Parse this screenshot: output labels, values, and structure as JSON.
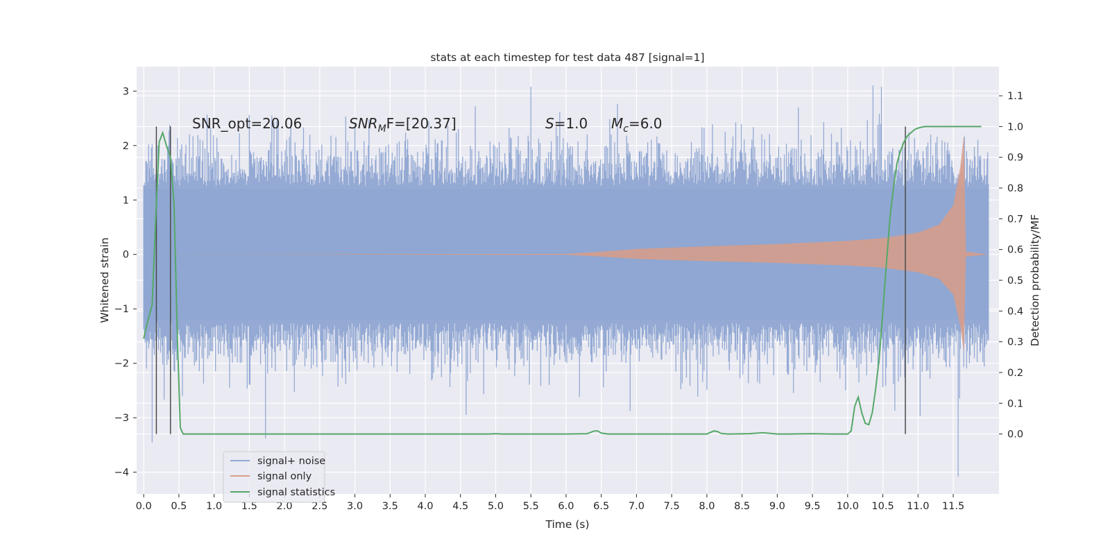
{
  "chart_data": {
    "type": "line",
    "title": "stats at each timestep for test data 487 [signal=1]",
    "xlabel": "Time (s)",
    "ylabel": "Whitened strain",
    "y2label": "Detection probability/MF",
    "xlim": [
      -0.1,
      12.15
    ],
    "ylim": [
      -4.4,
      3.45
    ],
    "y2lim": [
      -0.195,
      1.195
    ],
    "x_ticks": [
      "0.0",
      "0.5",
      "1.0",
      "1.5",
      "2.0",
      "2.5",
      "3.0",
      "3.5",
      "4.0",
      "4.5",
      "5.0",
      "5.5",
      "6.0",
      "6.5",
      "7.0",
      "7.5",
      "8.0",
      "8.5",
      "9.0",
      "9.5",
      "10.0",
      "10.5",
      "11.0",
      "11.5"
    ],
    "y_ticks": [
      "3",
      "2",
      "1",
      "0",
      "−1",
      "−2",
      "−3",
      "−4"
    ],
    "y2_ticks": [
      "1.1",
      "1.0",
      "0.9",
      "0.8",
      "0.7",
      "0.6",
      "0.5",
      "0.4",
      "0.3",
      "0.2",
      "0.1",
      "0.0"
    ],
    "grid": true,
    "legend_position": "lower-left",
    "annotations": {
      "snr_opt": "SNR_opt=20.06",
      "snr_mf_main": "SNR",
      "snr_mf_sub": "M",
      "snr_mf_rest": "F=[20.37]",
      "s_main": "S",
      "s_rest": "=1.0",
      "mc_main": "M",
      "mc_sub": "c",
      "mc_rest": "=6.0"
    },
    "vertical_lines_x": [
      0.18,
      0.38,
      10.82
    ],
    "series": [
      {
        "name": "signal+ noise",
        "color": "#8fa7d2",
        "description_points": {
          "t_start": 0.0,
          "t_end": 12.0,
          "envelope_typical": 1.2,
          "notable_spikes": [
            [
              0.12,
              -3.45
            ],
            [
              1.73,
              -3.38
            ],
            [
              5.5,
              3.08
            ],
            [
              10.48,
              3.08
            ],
            [
              11.57,
              -4.08
            ]
          ]
        }
      },
      {
        "name": "signal only",
        "color": "#d99c88",
        "envelope": [
          [
            0.0,
            0.0
          ],
          [
            6.0,
            0.01
          ],
          [
            6.5,
            0.05
          ],
          [
            7.0,
            0.1
          ],
          [
            8.0,
            0.15
          ],
          [
            9.0,
            0.19
          ],
          [
            10.0,
            0.25
          ],
          [
            10.5,
            0.3
          ],
          [
            11.0,
            0.4
          ],
          [
            11.3,
            0.55
          ],
          [
            11.5,
            0.9
          ],
          [
            11.6,
            1.6
          ],
          [
            11.65,
            2.2
          ],
          [
            11.68,
            0.05
          ],
          [
            12.0,
            0.0
          ]
        ]
      },
      {
        "name": "signal statistics",
        "color": "#55a868",
        "x": [
          0.0,
          0.05,
          0.12,
          0.18,
          0.22,
          0.27,
          0.32,
          0.38,
          0.43,
          0.48,
          0.52,
          0.56,
          0.6,
          0.7,
          1.0,
          2.0,
          3.0,
          4.0,
          4.9,
          5.0,
          5.1,
          6.0,
          6.3,
          6.4,
          6.45,
          6.5,
          6.6,
          7.0,
          8.0,
          8.1,
          8.15,
          8.2,
          8.3,
          8.6,
          8.8,
          9.0,
          9.2,
          9.5,
          9.8,
          10.0,
          10.05,
          10.1,
          10.15,
          10.2,
          10.25,
          10.3,
          10.35,
          10.4,
          10.45,
          10.5,
          10.55,
          10.6,
          10.65,
          10.7,
          10.75,
          10.8,
          10.85,
          10.9,
          10.95,
          11.0,
          11.05,
          11.1,
          11.2,
          11.3,
          11.5,
          11.7,
          11.9
        ],
        "y": [
          0.31,
          0.36,
          0.42,
          0.75,
          0.95,
          0.98,
          0.94,
          0.9,
          0.75,
          0.3,
          0.02,
          0.0,
          0.0,
          0.0,
          0.0,
          0.0,
          0.0,
          0.0,
          0.0,
          0.001,
          0.0,
          0.0,
          0.001,
          0.01,
          0.01,
          0.003,
          0.0,
          0.0,
          0.0,
          0.01,
          0.008,
          0.002,
          0.0,
          0.001,
          0.004,
          0.0,
          0.0,
          0.001,
          0.0,
          0.0,
          0.01,
          0.09,
          0.12,
          0.07,
          0.035,
          0.03,
          0.07,
          0.15,
          0.25,
          0.4,
          0.55,
          0.7,
          0.8,
          0.88,
          0.92,
          0.95,
          0.97,
          0.98,
          0.99,
          0.995,
          0.998,
          1.0,
          1.0,
          1.0,
          1.0,
          1.0,
          1.0
        ]
      }
    ]
  }
}
